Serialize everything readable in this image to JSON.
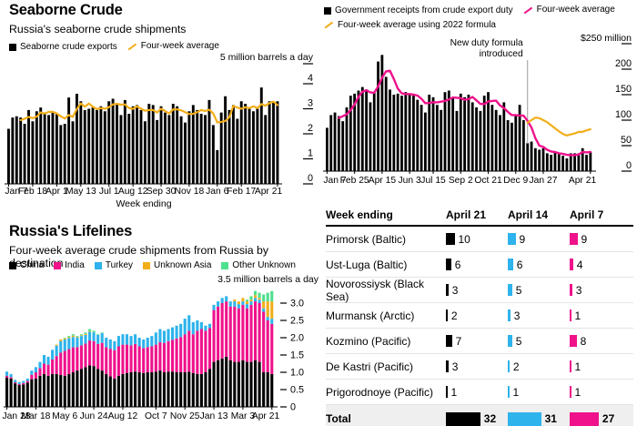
{
  "colors": {
    "black": "#000000",
    "pink": "#ef128b",
    "cyan": "#2eb3ec",
    "yellow": "#f2ae19",
    "green": "#4de08d",
    "annotation_gray": "#9b9b9b",
    "rule_gray": "#e4e4e4",
    "total_row_bg": "#efefef"
  },
  "chart_data": [
    {
      "id": "seaborne",
      "type": "bar",
      "title": "Seaborne Crude",
      "subtitle": "Russia's seaborne crude shipments",
      "legend": [
        {
          "label": "Seaborne crude exports",
          "glyph": "square",
          "color_key": "black"
        },
        {
          "label": "Four-week average",
          "glyph": "line",
          "color_key": "yellow"
        }
      ],
      "unit_label": "5 million barrels a day",
      "xlabel": "Week ending",
      "ylim": [
        0,
        5
      ],
      "yticks": [
        0,
        1,
        2,
        3,
        4
      ],
      "xticks": [
        {
          "i": 0,
          "l": "Jan 7"
        },
        {
          "i": 6,
          "l": "Feb 18"
        },
        {
          "i": 12,
          "l": "Apr 1"
        },
        {
          "i": 18,
          "l": "May 13"
        },
        {
          "i": 25,
          "l": "Jul 1"
        },
        {
          "i": 31,
          "l": "Aug 12"
        },
        {
          "i": 38,
          "l": "Sep 30"
        },
        {
          "i": 45,
          "l": "Nov 18"
        },
        {
          "i": 52,
          "l": "Jan 6"
        },
        {
          "i": 58,
          "l": "Feb 17"
        },
        {
          "i": 67,
          "l": "Apr 21"
        }
      ],
      "values": [
        2.2,
        2.65,
        2.7,
        2.65,
        2.4,
        2.95,
        2.5,
        2.9,
        3.05,
        2.8,
        2.75,
        2.9,
        2.8,
        2.35,
        2.4,
        3.45,
        2.5,
        3.6,
        3.3,
        2.95,
        3.0,
        3.05,
        2.95,
        3.1,
        2.9,
        3.3,
        3.4,
        3.2,
        2.75,
        3.35,
        2.8,
        3.1,
        3.15,
        2.95,
        2.5,
        3.2,
        3.15,
        2.55,
        3.1,
        2.85,
        2.75,
        3.2,
        3.1,
        2.7,
        2.45,
        2.9,
        3.15,
        2.95,
        2.8,
        2.75,
        3.35,
        2.35,
        1.35,
        2.85,
        3.5,
        2.95,
        3.15,
        2.6,
        3.3,
        3.2,
        3.0,
        2.9,
        3.0,
        3.85,
        2.75,
        3.3,
        3.25,
        3.3
      ],
      "moving_average": {
        "window": 4,
        "label": "Four-week average",
        "color_key": "yellow"
      }
    },
    {
      "id": "receipts",
      "type": "bar",
      "title": "",
      "subtitle": "",
      "legend": [
        {
          "label": "Government receipts from crude export duty",
          "glyph": "square",
          "color_key": "black"
        },
        {
          "label": "Four-week average",
          "glyph": "line",
          "color_key": "pink"
        },
        {
          "label": "Four-week average using 2022 formula",
          "glyph": "line",
          "color_key": "yellow"
        }
      ],
      "unit_label": "$250 million",
      "ylim": [
        0,
        250
      ],
      "yticks": [
        0,
        50,
        100,
        150,
        200
      ],
      "xticks": [
        {
          "i": 0,
          "l": "Jan 7"
        },
        {
          "i": 7,
          "l": "Feb 25"
        },
        {
          "i": 14,
          "l": "Apr 15"
        },
        {
          "i": 21,
          "l": "Jun 3"
        },
        {
          "i": 27,
          "l": "Jul 15"
        },
        {
          "i": 34,
          "l": "Sep 2"
        },
        {
          "i": 41,
          "l": "Oct 21"
        },
        {
          "i": 48,
          "l": "Dec 9"
        },
        {
          "i": 55,
          "l": "Jan 27"
        },
        {
          "i": 67,
          "l": "Apr 21"
        }
      ],
      "values": [
        85,
        110,
        115,
        108,
        98,
        125,
        148,
        152,
        158,
        165,
        160,
        135,
        155,
        215,
        228,
        185,
        160,
        150,
        152,
        148,
        155,
        150,
        148,
        140,
        130,
        115,
        150,
        145,
        130,
        120,
        155,
        158,
        145,
        118,
        152,
        145,
        150,
        135,
        125,
        118,
        148,
        155,
        130,
        120,
        110,
        135,
        100,
        95,
        110,
        130,
        100,
        55,
        58,
        45,
        42,
        45,
        35,
        32,
        38,
        35,
        30,
        25,
        35,
        35,
        35,
        45,
        32,
        38
      ],
      "moving_average": {
        "window": 4,
        "label": "Four-week average",
        "color_key": "pink"
      },
      "formula_2022": {
        "label": "Four-week average using 2022 formula",
        "color_key": "yellow",
        "start_index": 51,
        "values": [
          95,
          100,
          105,
          104,
          100,
          96,
          90,
          84,
          78,
          73,
          70,
          72,
          74,
          77,
          77,
          80,
          82
        ]
      },
      "annotation": {
        "text_lines": [
          "New duty formula",
          "introduced"
        ],
        "index": 51
      }
    },
    {
      "id": "lifelines",
      "type": "stacked_bar",
      "title": "Russia's Lifelines",
      "subtitle": "Four-week average crude shipments from Russia by destination",
      "unit_label": "3.5 million barrels a day",
      "ylim": [
        0,
        3.5
      ],
      "ytick_labels": [
        "0",
        "0.5",
        "1.0",
        "1.5",
        "2.0",
        "2.5",
        "3.0"
      ],
      "ytick_values": [
        0,
        0.5,
        1.0,
        1.5,
        2.0,
        2.5,
        3.0
      ],
      "xticks": [
        {
          "i": 0,
          "l": "Jan 28"
        },
        {
          "i": 7,
          "l": "Mar 18"
        },
        {
          "i": 14,
          "l": "May 6"
        },
        {
          "i": 21,
          "l": "Jun 24"
        },
        {
          "i": 28,
          "l": "Aug 12"
        },
        {
          "i": 36,
          "l": "Oct 7"
        },
        {
          "i": 43,
          "l": "Nov 25"
        },
        {
          "i": 50,
          "l": "Jan 13"
        },
        {
          "i": 57,
          "l": "Mar 3"
        },
        {
          "i": 64,
          "l": "Apr 21"
        }
      ],
      "series": [
        {
          "name": "China",
          "color_key": "black",
          "values": [
            0.85,
            0.82,
            0.68,
            0.63,
            0.65,
            0.7,
            0.8,
            0.82,
            0.9,
            0.95,
            0.9,
            0.95,
            0.95,
            0.92,
            0.9,
            0.95,
            1.0,
            1.05,
            1.1,
            1.15,
            1.2,
            1.18,
            1.1,
            1.05,
            0.95,
            0.88,
            0.82,
            0.9,
            0.95,
            0.98,
            1.0,
            1.02,
            1.0,
            0.98,
            1.0,
            1.0,
            1.02,
            1.05,
            1.0,
            1.02,
            1.02,
            1.0,
            1.0,
            1.0,
            1.02,
            0.98,
            0.95,
            0.95,
            1.0,
            1.1,
            1.3,
            1.35,
            1.4,
            1.45,
            1.35,
            1.3,
            1.3,
            1.35,
            1.3,
            1.3,
            1.35,
            1.3,
            1.0,
            1.0,
            0.95
          ]
        },
        {
          "name": "India",
          "color_key": "pink",
          "values": [
            0.05,
            0.04,
            0.03,
            0.03,
            0.04,
            0.05,
            0.13,
            0.18,
            0.22,
            0.3,
            0.32,
            0.42,
            0.52,
            0.65,
            0.72,
            0.72,
            0.72,
            0.68,
            0.68,
            0.68,
            0.72,
            0.72,
            0.72,
            0.8,
            0.78,
            0.8,
            0.82,
            0.85,
            0.85,
            0.82,
            0.78,
            0.8,
            0.75,
            0.72,
            0.73,
            0.75,
            0.78,
            0.82,
            0.85,
            0.88,
            0.92,
            0.98,
            1.02,
            1.1,
            1.18,
            1.12,
            1.25,
            1.3,
            1.2,
            1.18,
            1.5,
            1.55,
            1.6,
            1.6,
            1.55,
            1.6,
            1.55,
            1.6,
            1.55,
            1.65,
            1.7,
            1.7,
            1.75,
            1.5,
            1.45
          ]
        },
        {
          "name": "Turkey",
          "color_key": "cyan",
          "values": [
            0.12,
            0.09,
            0.07,
            0.06,
            0.06,
            0.07,
            0.12,
            0.15,
            0.18,
            0.25,
            0.23,
            0.28,
            0.3,
            0.33,
            0.33,
            0.32,
            0.3,
            0.28,
            0.27,
            0.25,
            0.25,
            0.25,
            0.26,
            0.28,
            0.27,
            0.27,
            0.26,
            0.3,
            0.3,
            0.3,
            0.27,
            0.28,
            0.25,
            0.25,
            0.27,
            0.3,
            0.35,
            0.38,
            0.35,
            0.35,
            0.36,
            0.37,
            0.38,
            0.45,
            0.45,
            0.35,
            0.3,
            0.2,
            0.15,
            0.12,
            0.15,
            0.15,
            0.15,
            0.15,
            0.15,
            0.15,
            0.12,
            0.1,
            0.12,
            0.1,
            0.1,
            0.1,
            0.1,
            0.1,
            0.15
          ]
        },
        {
          "name": "Unknown Asia",
          "color_key": "yellow",
          "values": [
            0,
            0,
            0,
            0,
            0,
            0,
            0,
            0,
            0,
            0,
            0,
            0,
            0.03,
            0.05,
            0.03,
            0.03,
            0.04,
            0.02,
            0.02,
            0.03,
            0.02,
            0,
            0,
            0,
            0,
            0,
            0,
            0,
            0,
            0,
            0,
            0,
            0,
            0,
            0,
            0,
            0,
            0,
            0,
            0,
            0,
            0,
            0,
            0,
            0,
            0,
            0,
            0,
            0,
            0,
            0,
            0,
            0,
            0,
            0,
            0.05,
            0.08,
            0.1,
            0.08,
            0.05,
            0.08,
            0.05,
            0.2,
            0.45,
            0.5
          ]
        },
        {
          "name": "Other Unknown",
          "color_key": "green",
          "values": [
            0,
            0,
            0,
            0,
            0,
            0,
            0,
            0,
            0,
            0,
            0,
            0,
            0,
            0,
            0.02,
            0.03,
            0.04,
            0.02,
            0.03,
            0.04,
            0.06,
            0.05,
            0.02,
            0.02,
            0,
            0,
            0,
            0,
            0,
            0,
            0,
            0,
            0,
            0,
            0,
            0,
            0,
            0,
            0,
            0,
            0,
            0,
            0,
            0,
            0,
            0,
            0,
            0,
            0,
            0,
            0,
            0,
            0,
            0,
            0,
            0,
            0,
            0,
            0.05,
            0.1,
            0.12,
            0.15,
            0.2,
            0.25,
            0.3
          ]
        }
      ]
    },
    {
      "id": "ports",
      "type": "table",
      "columns": [
        "Week ending",
        "April 21",
        "April 14",
        "April 7"
      ],
      "column_color_keys": [
        null,
        "black",
        "cyan",
        "pink"
      ],
      "rows": [
        {
          "label": "Primorsk (Baltic)",
          "values": [
            10,
            9,
            9
          ]
        },
        {
          "label": "Ust-Luga (Baltic)",
          "values": [
            6,
            6,
            4
          ]
        },
        {
          "label": "Novorossiysk (Black Sea)",
          "values": [
            3,
            5,
            3
          ]
        },
        {
          "label": "Murmansk (Arctic)",
          "values": [
            2,
            3,
            1
          ]
        },
        {
          "label": "Kozmino (Pacific)",
          "values": [
            7,
            5,
            8
          ]
        },
        {
          "label": "De Kastri (Pacific)",
          "values": [
            3,
            2,
            1
          ]
        },
        {
          "label": "Prigorodnoye (Pacific)",
          "values": [
            1,
            1,
            1
          ]
        }
      ],
      "total": {
        "label": "Total",
        "values": [
          32,
          31,
          27
        ]
      }
    }
  ]
}
